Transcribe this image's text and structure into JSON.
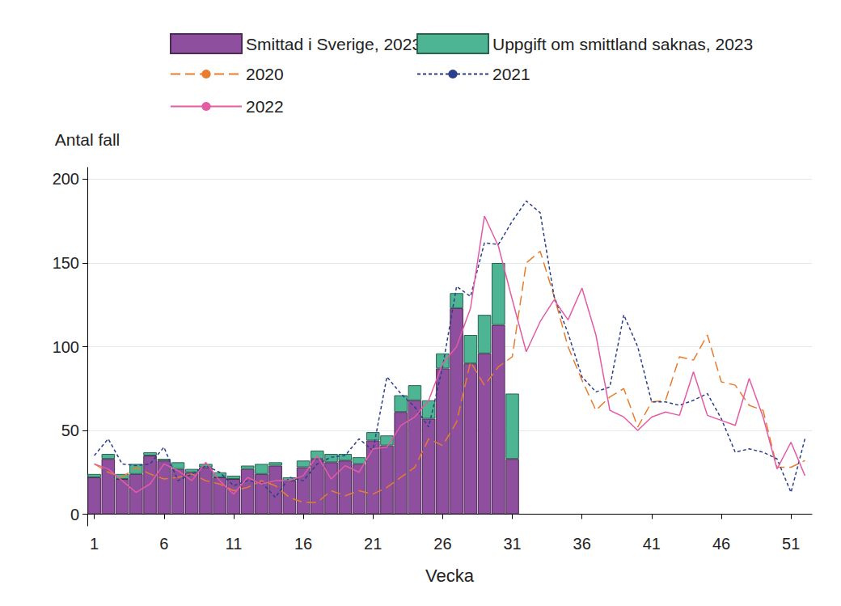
{
  "chart_data": {
    "type": "bar",
    "x_label": "Vecka",
    "y_label": "Antal fall",
    "categories": [
      1,
      null,
      null,
      null,
      null,
      6,
      null,
      null,
      null,
      null,
      11,
      null,
      null,
      null,
      null,
      16,
      null,
      null,
      null,
      null,
      21,
      null,
      null,
      null,
      null,
      26,
      null,
      null,
      null,
      null,
      31,
      null,
      null,
      null,
      null,
      36,
      null,
      null,
      null,
      null,
      41,
      null,
      null,
      null,
      null,
      46,
      null,
      null,
      null,
      null,
      51,
      null
    ],
    "stacked": true,
    "grid": true,
    "legend": "top",
    "ylim": [
      -7,
      207
    ],
    "yticks": [
      0,
      50,
      100,
      150,
      200
    ],
    "series": [
      {
        "name": "Smittad i Sverige, 2023",
        "type": "bar",
        "color": "#8e4f9e",
        "values": [
          22,
          33,
          21,
          24,
          35,
          32,
          27,
          25,
          28,
          22,
          21,
          27,
          24,
          29,
          20,
          28,
          33,
          31,
          32,
          30,
          44,
          41,
          61,
          68,
          57,
          87,
          123,
          90,
          96,
          113,
          33,
          null,
          null,
          null,
          null,
          null,
          null,
          null,
          null,
          null,
          null,
          null,
          null,
          null,
          null,
          null,
          null,
          null,
          null,
          null,
          null,
          null
        ]
      },
      {
        "name": "Uppgift om smittland saknas, 2023",
        "type": "bar",
        "color": "#4db594",
        "values": [
          2,
          3,
          3,
          6,
          2,
          1,
          4,
          2,
          2,
          3,
          2,
          2,
          6,
          2,
          2,
          4,
          5,
          5,
          4,
          4,
          5,
          6,
          10,
          9,
          11,
          9,
          9,
          17,
          23,
          37,
          39,
          null,
          null,
          null,
          null,
          null,
          null,
          null,
          null,
          null,
          null,
          null,
          null,
          null,
          null,
          null,
          null,
          null,
          null,
          null,
          null,
          null
        ]
      },
      {
        "name": "2020",
        "type": "line",
        "line_style": "dashed",
        "color": "#e87d2f",
        "values": [
          30,
          25,
          22,
          28,
          24,
          21,
          22,
          24,
          20,
          18,
          14,
          16,
          20,
          17,
          10,
          7,
          7,
          14,
          11,
          14,
          12,
          16,
          22,
          28,
          45,
          41,
          55,
          91,
          77,
          88,
          94,
          150,
          157,
          130,
          100,
          80,
          62,
          70,
          75,
          52,
          67,
          68,
          94,
          92,
          107,
          79,
          77,
          65,
          62,
          28,
          28,
          32
        ]
      },
      {
        "name": "2021",
        "type": "line",
        "line_style": "dotted",
        "color": "#2b3f8c",
        "values": [
          35,
          45,
          30,
          29,
          30,
          40,
          20,
          24,
          29,
          25,
          17,
          20,
          19,
          10,
          22,
          20,
          30,
          34,
          35,
          45,
          38,
          82,
          72,
          64,
          52,
          88,
          136,
          130,
          162,
          161,
          175,
          187,
          180,
          130,
          108,
          82,
          73,
          76,
          119,
          100,
          67,
          67,
          65,
          68,
          72,
          57,
          37,
          39,
          37,
          33,
          13,
          45
        ]
      },
      {
        "name": "2022",
        "type": "line",
        "line_style": "solid",
        "color": "#e45ba4",
        "values": [
          30,
          27,
          20,
          13,
          18,
          30,
          26,
          20,
          31,
          20,
          12,
          22,
          18,
          20,
          20,
          23,
          35,
          21,
          29,
          25,
          39,
          40,
          53,
          58,
          68,
          90,
          100,
          123,
          178,
          160,
          128,
          97,
          115,
          128,
          116,
          135,
          107,
          62,
          58,
          50,
          58,
          61,
          59,
          85,
          59,
          56,
          53,
          81,
          58,
          27,
          43,
          23
        ]
      }
    ]
  }
}
